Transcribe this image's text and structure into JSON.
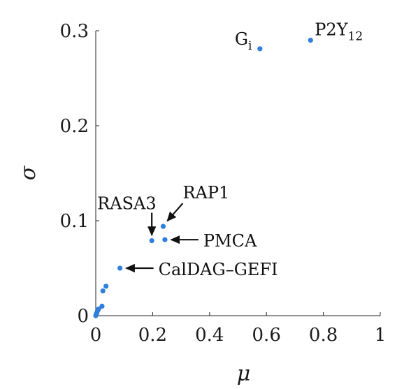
{
  "chart_data": {
    "type": "scatter",
    "xlabel": "μ",
    "ylabel": "σ",
    "xlim": [
      0,
      1
    ],
    "ylim": [
      0,
      0.3
    ],
    "xticks": [
      "0",
      "0.2",
      "0.4",
      "0.6",
      "0.8",
      "1"
    ],
    "yticks": [
      "0",
      "0.1",
      "0.2",
      "0.3"
    ],
    "grid": false,
    "color": "#2f7fdb",
    "series": [
      {
        "points": [
          {
            "x": 0.0,
            "y": 0.0
          },
          {
            "x": 0.002,
            "y": 0.002
          },
          {
            "x": 0.004,
            "y": 0.003
          },
          {
            "x": 0.006,
            "y": 0.005
          },
          {
            "x": 0.01,
            "y": 0.007
          },
          {
            "x": 0.022,
            "y": 0.01
          },
          {
            "x": 0.025,
            "y": 0.026
          },
          {
            "x": 0.036,
            "y": 0.031
          },
          {
            "x": 0.085,
            "y": 0.05
          },
          {
            "x": 0.197,
            "y": 0.079
          },
          {
            "x": 0.237,
            "y": 0.094
          },
          {
            "x": 0.243,
            "y": 0.08
          },
          {
            "x": 0.577,
            "y": 0.281
          },
          {
            "x": 0.755,
            "y": 0.29
          }
        ]
      }
    ],
    "annotations": [
      {
        "text": "G",
        "sub": "i",
        "x": 0.577,
        "y": 0.281,
        "style": "label"
      },
      {
        "text": "P2Y",
        "sub": "12",
        "x": 0.755,
        "y": 0.29,
        "style": "label"
      },
      {
        "text": "RASA3",
        "sub": "",
        "x": 0.197,
        "y": 0.079,
        "style": "arrow-down"
      },
      {
        "text": "RAP1",
        "sub": "",
        "x": 0.237,
        "y": 0.094,
        "style": "arrow-diag"
      },
      {
        "text": "PMCA",
        "sub": "",
        "x": 0.243,
        "y": 0.08,
        "style": "arrow-left"
      },
      {
        "text": "CalDAG–GEFI",
        "sub": "",
        "x": 0.085,
        "y": 0.05,
        "style": "arrow-left"
      }
    ]
  }
}
